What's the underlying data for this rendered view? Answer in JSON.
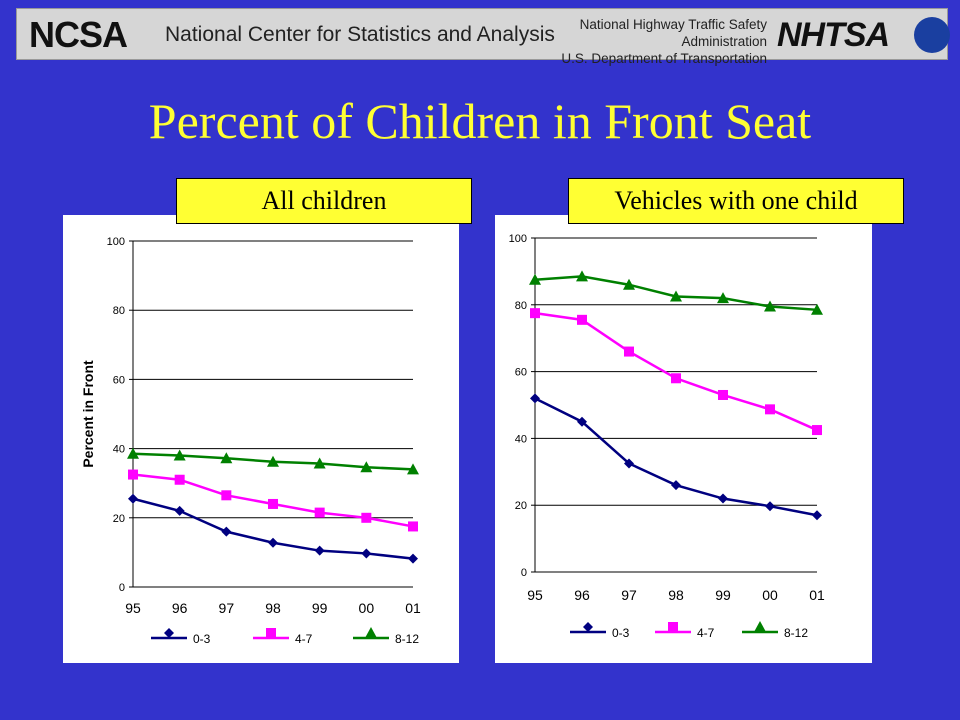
{
  "header": {
    "logo_text": "NCSA",
    "center_name": "National Center for Statistics and Analysis",
    "agency_line1": "National Highway Traffic Safety Administration",
    "agency_line2": "U.S. Department of Transportation",
    "agency_logo_text": "NHTSA"
  },
  "title": "Percent of Children in Front Seat",
  "chart_data": [
    {
      "type": "line",
      "label": "All children",
      "x": [
        "95",
        "96",
        "97",
        "98",
        "99",
        "00",
        "01"
      ],
      "ylabel": "Percent in Front",
      "ylim": [
        0,
        100
      ],
      "yticks": [
        0,
        20,
        40,
        60,
        80,
        100
      ],
      "grid": true,
      "legend": "bottom",
      "series": [
        {
          "name": "0-3",
          "color": "#000080",
          "marker": "diamond",
          "values": [
            25.5,
            22,
            16,
            12.8,
            10.5,
            9.7,
            8.2
          ]
        },
        {
          "name": "4-7",
          "color": "#ff00ff",
          "marker": "square",
          "values": [
            32.5,
            31,
            26.5,
            24,
            21.5,
            20,
            17.5
          ]
        },
        {
          "name": "8-12",
          "color": "#008000",
          "marker": "triangle",
          "values": [
            38.5,
            38,
            37.2,
            36.2,
            35.7,
            34.6,
            34
          ]
        }
      ]
    },
    {
      "type": "line",
      "label": "Vehicles with one child",
      "x": [
        "95",
        "96",
        "97",
        "98",
        "99",
        "00",
        "01"
      ],
      "ylabel": "",
      "ylim": [
        0,
        100
      ],
      "yticks": [
        0,
        20,
        40,
        60,
        80,
        100
      ],
      "grid": true,
      "legend": "bottom",
      "series": [
        {
          "name": "0-3",
          "color": "#000080",
          "marker": "diamond",
          "values": [
            52,
            45,
            32.5,
            26,
            22,
            19.7,
            17
          ]
        },
        {
          "name": "4-7",
          "color": "#ff00ff",
          "marker": "square",
          "values": [
            77.5,
            75.5,
            66,
            58,
            53,
            48.7,
            42.5
          ]
        },
        {
          "name": "8-12",
          "color": "#008000",
          "marker": "triangle",
          "values": [
            87.5,
            88.5,
            86,
            82.5,
            82,
            79.5,
            78.5
          ]
        }
      ]
    }
  ]
}
